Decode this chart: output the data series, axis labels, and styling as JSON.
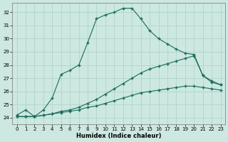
{
  "xlabel": "Humidex (Indice chaleur)",
  "xlim": [
    -0.5,
    23.5
  ],
  "ylim": [
    23.5,
    32.7
  ],
  "yticks": [
    24,
    25,
    26,
    27,
    28,
    29,
    30,
    31,
    32
  ],
  "xticks": [
    0,
    1,
    2,
    3,
    4,
    5,
    6,
    7,
    8,
    9,
    10,
    11,
    12,
    13,
    14,
    15,
    16,
    17,
    18,
    19,
    20,
    21,
    22,
    23
  ],
  "background_color": "#cce8e0",
  "grid_color": "#b0d4cc",
  "line_color": "#1a6b5a",
  "line1_x": [
    0,
    1,
    2,
    3,
    4,
    5,
    6,
    7,
    8,
    9,
    10,
    11,
    12,
    13,
    14,
    15,
    16,
    17,
    18,
    19,
    20,
    21,
    22,
    23
  ],
  "line1_y": [
    24.2,
    24.6,
    24.1,
    24.6,
    25.5,
    27.3,
    27.6,
    28.0,
    29.7,
    31.5,
    31.8,
    32.0,
    32.3,
    32.3,
    31.5,
    30.6,
    30.0,
    29.6,
    29.2,
    28.9,
    28.8,
    27.2,
    26.7,
    26.5
  ],
  "line2_x": [
    0,
    1,
    2,
    3,
    4,
    5,
    6,
    7,
    8,
    9,
    10,
    11,
    12,
    13,
    14,
    15,
    16,
    17,
    18,
    19,
    20,
    21,
    22,
    23
  ],
  "line2_y": [
    24.1,
    24.1,
    24.1,
    24.2,
    24.3,
    24.5,
    24.6,
    24.8,
    25.1,
    25.4,
    25.8,
    26.2,
    26.6,
    27.0,
    27.4,
    27.7,
    27.9,
    28.1,
    28.3,
    28.5,
    28.7,
    27.2,
    26.8,
    26.5
  ],
  "line3_x": [
    0,
    1,
    2,
    3,
    4,
    5,
    6,
    7,
    8,
    9,
    10,
    11,
    12,
    13,
    14,
    15,
    16,
    17,
    18,
    19,
    20,
    21,
    22,
    23
  ],
  "line3_y": [
    24.1,
    24.1,
    24.1,
    24.2,
    24.3,
    24.4,
    24.5,
    24.6,
    24.8,
    24.9,
    25.1,
    25.3,
    25.5,
    25.7,
    25.9,
    26.0,
    26.1,
    26.2,
    26.3,
    26.4,
    26.4,
    26.3,
    26.2,
    26.1
  ]
}
